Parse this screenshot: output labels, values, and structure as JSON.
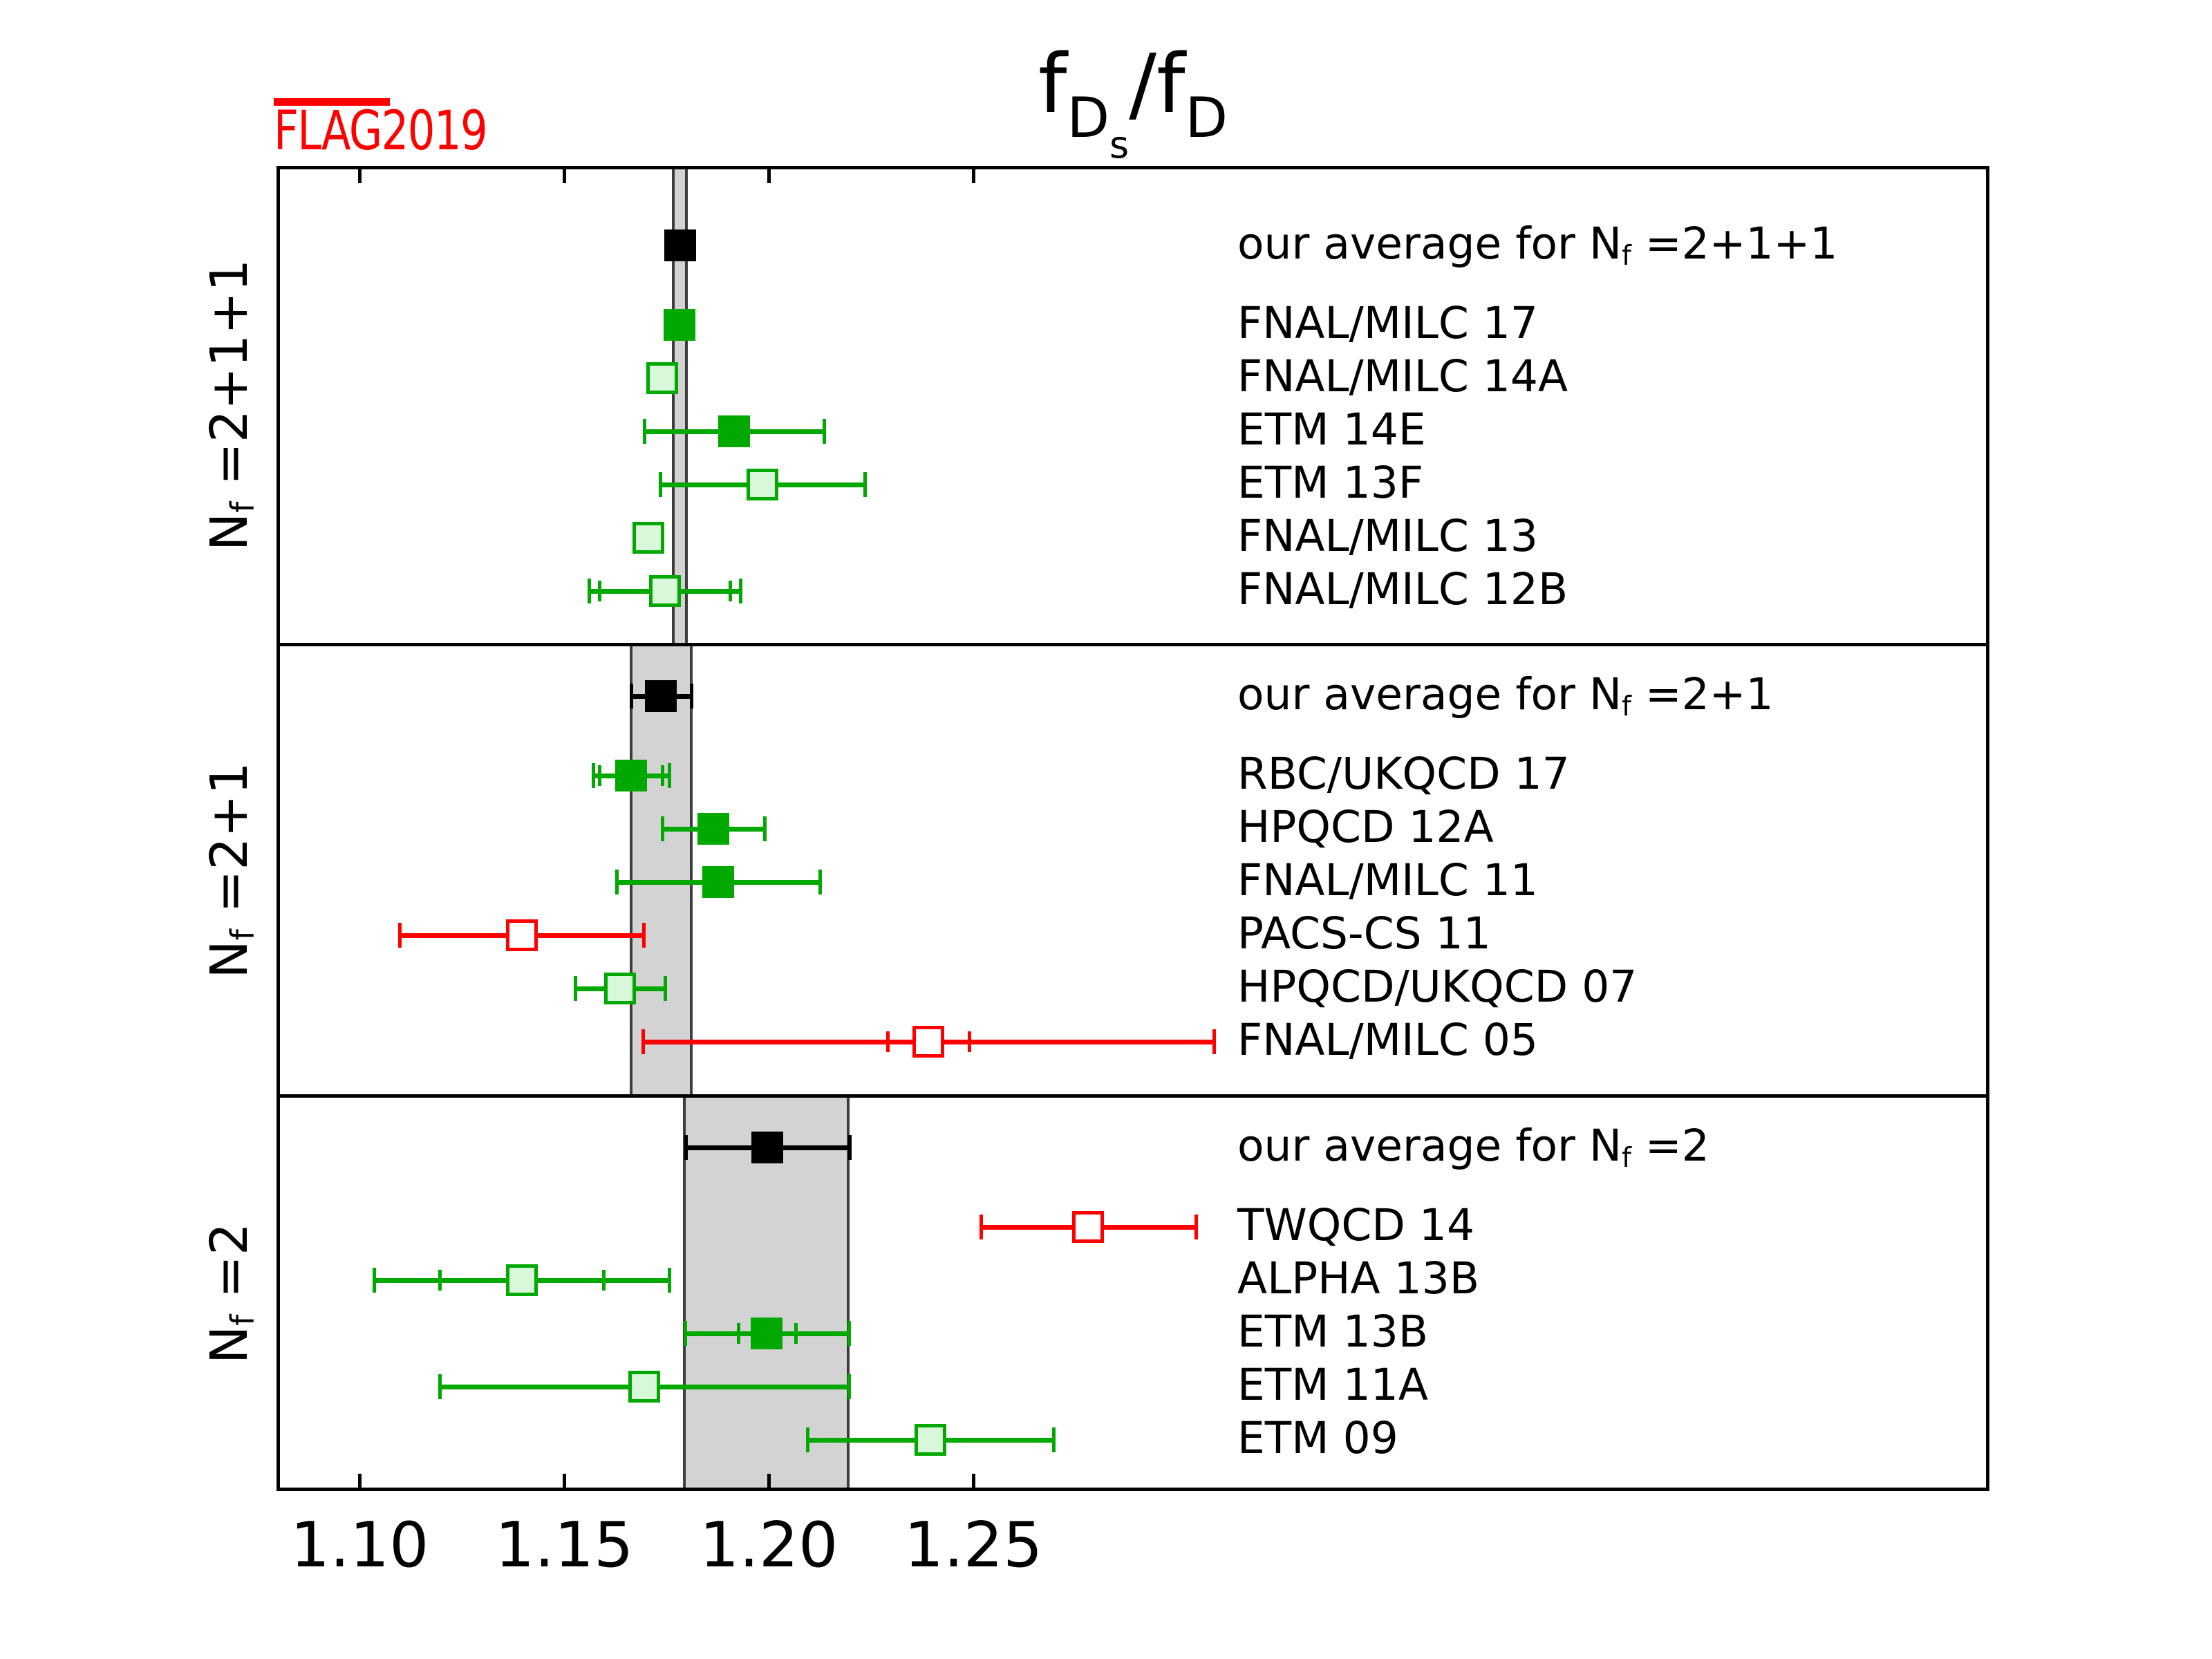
{
  "logo": {
    "overlined": "FLA",
    "rest": "G2019"
  },
  "title": {
    "p1": "f",
    "p2": "D",
    "p3": "s",
    "p4": "/f",
    "p5": "D",
    "plain": "fDs/fD"
  },
  "colors": {
    "green": "#00a800",
    "lightgreen_fill": "#d9f7d9",
    "red": "#ff0000",
    "black": "#000000",
    "white": "#ffffff",
    "band_fill": "#d3d3d3",
    "band_edge": "#3d3d3d",
    "logo_red": "#ff0000"
  },
  "chart_data": {
    "type": "scatter",
    "subtype": "forest-errorbar",
    "title": "fDs/fD",
    "xlabel": "",
    "ylabel": "",
    "xlim": [
      1.0797,
      1.4983
    ],
    "grid": false,
    "x_ticks": [
      {
        "value": 1.1,
        "label": "1.10"
      },
      {
        "value": 1.15,
        "label": "1.15"
      },
      {
        "value": 1.2,
        "label": "1.20"
      },
      {
        "value": 1.25,
        "label": "1.25"
      }
    ],
    "panels": [
      {
        "nf_label": "Nf =2+1+1",
        "nf_label_parts": [
          {
            "t": "N"
          },
          {
            "t": "f",
            "sub": true
          },
          {
            "t": " =2+1+1"
          }
        ],
        "band": {
          "center": 1.1783,
          "halfwidth": 0.0016
        },
        "entries": [
          {
            "label": "our average for Nf =2+1+1",
            "label_parts": [
              {
                "t": "our average for N"
              },
              {
                "t": "f",
                "sub": true
              },
              {
                "t": " =2+1+1"
              }
            ],
            "value": 1.1783,
            "err": 0.0016,
            "style": "average"
          },
          {
            "label": "FNAL/MILC 17",
            "value": 1.1782,
            "err": 0.0016,
            "style": "green"
          },
          {
            "label": "FNAL/MILC 14A",
            "value": 1.174,
            "err": 0.0031,
            "style": "lightgreen"
          },
          {
            "label": "ETM 14E",
            "value": 1.1915,
            "err": 0.022,
            "style": "green"
          },
          {
            "label": "ETM 13F",
            "value": 1.1985,
            "err": 0.025,
            "style": "lightgreen"
          },
          {
            "label": "FNAL/MILC 13",
            "value": 1.1705,
            "err": 0.0027,
            "style": "lightgreen"
          },
          {
            "label": "FNAL/MILC 12B",
            "value": 1.1746,
            "err": 0.0185,
            "err_inner": 0.016,
            "style": "lightgreen"
          }
        ]
      },
      {
        "nf_label": "Nf =2+1",
        "nf_label_parts": [
          {
            "t": "N"
          },
          {
            "t": "f",
            "sub": true
          },
          {
            "t": " =2+1"
          }
        ],
        "band": {
          "center": 1.1737,
          "halfwidth": 0.0074
        },
        "entries": [
          {
            "label": "our average for Nf =2+1",
            "label_parts": [
              {
                "t": "our average for N"
              },
              {
                "t": "f",
                "sub": true
              },
              {
                "t": " =2+1"
              }
            ],
            "value": 1.1737,
            "err": 0.0073,
            "style": "average"
          },
          {
            "label": "RBC/UKQCD 17",
            "value": 1.1663,
            "err": 0.0093,
            "err_inner": 0.0077,
            "style": "green"
          },
          {
            "label": "HPQCD 12A",
            "value": 1.1865,
            "err": 0.0125,
            "style": "green"
          },
          {
            "label": "FNAL/MILC 11",
            "value": 1.1876,
            "err": 0.0248,
            "style": "green"
          },
          {
            "label": "PACS-CS 11",
            "value": 1.1396,
            "err": 0.0298,
            "style": "red"
          },
          {
            "label": "HPQCD/UKQCD 07",
            "value": 1.1636,
            "err": 0.011,
            "style": "lightgreen"
          },
          {
            "label": "FNAL/MILC 05",
            "value": 1.239,
            "err": 0.0697,
            "err_inner": 0.01,
            "style": "red"
          }
        ]
      },
      {
        "nf_label": "Nf =2",
        "nf_label_parts": [
          {
            "t": "N"
          },
          {
            "t": "f",
            "sub": true
          },
          {
            "t": " =2"
          }
        ],
        "band": {
          "center": 1.1994,
          "halfwidth": 0.02
        },
        "entries": [
          {
            "label": "our average for Nf =2",
            "label_parts": [
              {
                "t": "our average for N"
              },
              {
                "t": "f",
                "sub": true
              },
              {
                "t": " =2"
              }
            ],
            "value": 1.1997,
            "err": 0.02,
            "style": "average"
          },
          {
            "label": "TWQCD 14",
            "value": 1.2781,
            "err": 0.0263,
            "style": "red"
          },
          {
            "label": "ALPHA 13B",
            "value": 1.1396,
            "err": 0.036,
            "err_inner": 0.02,
            "style": "lightgreen"
          },
          {
            "label": "ETM 13B",
            "value": 1.1995,
            "err": 0.02,
            "err_inner": 0.007,
            "style": "green"
          },
          {
            "label": "ETM 11A",
            "value": 1.1695,
            "err": 0.05,
            "style": "lightgreen"
          },
          {
            "label": "ETM 09",
            "value": 1.2395,
            "err": 0.03,
            "style": "lightgreen"
          }
        ]
      }
    ]
  }
}
